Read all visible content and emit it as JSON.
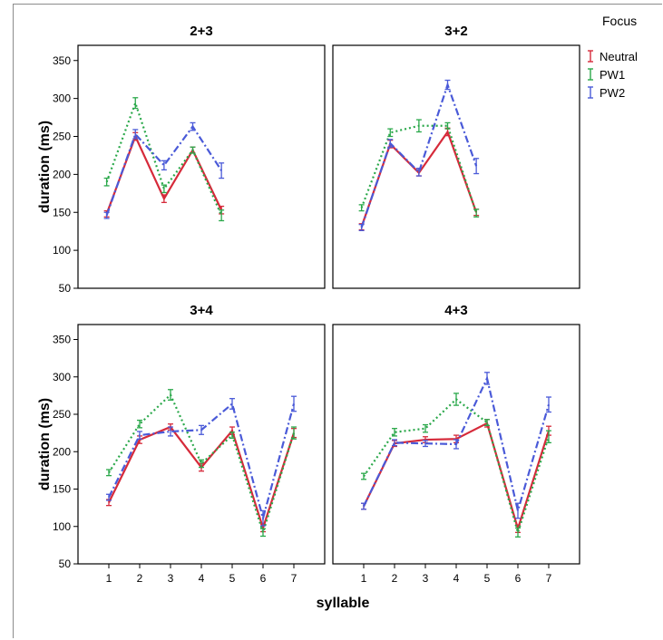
{
  "chart_data": {
    "type": "line",
    "ylabel": "duration (ms)",
    "xlabel": "syllable",
    "ylim": [
      50,
      370
    ],
    "yticks": [
      50,
      100,
      150,
      200,
      250,
      300,
      350
    ],
    "xticks": [
      1,
      2,
      3,
      4,
      5,
      6,
      7
    ],
    "error_bars": true,
    "legend": {
      "title": "Focus",
      "placement": "right",
      "entries": [
        {
          "name": "Neutral",
          "color": "#d62a3a",
          "dash": "solid"
        },
        {
          "name": "PW1",
          "color": "#2aa84a",
          "dash": "dotted"
        },
        {
          "name": "PW2",
          "color": "#4a5ad8",
          "dash": "dashdot"
        }
      ]
    },
    "panels": [
      {
        "title": "2+3",
        "x": [
          1,
          2,
          3,
          4,
          5
        ],
        "series": [
          {
            "name": "Neutral",
            "values": [
              148,
              250,
              168,
              232,
              153
            ],
            "errors": [
              4,
              5,
              5,
              4,
              5
            ]
          },
          {
            "name": "PW1",
            "values": [
              190,
              294,
              181,
              232,
              146
            ],
            "errors": [
              5,
              7,
              5,
              4,
              7
            ]
          },
          {
            "name": "PW2",
            "values": [
              146,
              253,
              212,
              263,
              205
            ],
            "errors": [
              4,
              6,
              6,
              5,
              10
            ]
          }
        ]
      },
      {
        "title": "3+2",
        "x": [
          1,
          2,
          3,
          4,
          5
        ],
        "series": [
          {
            "name": "Neutral",
            "values": [
              131,
              240,
              202,
              256,
              150
            ],
            "errors": [
              4,
              5,
              4,
              5,
              4
            ]
          },
          {
            "name": "PW1",
            "values": [
              156,
              255,
              264,
              264,
              149
            ],
            "errors": [
              4,
              5,
              8,
              4,
              5
            ]
          },
          {
            "name": "PW2",
            "values": [
              130,
              241,
              203,
              318,
              211
            ],
            "errors": [
              4,
              5,
              5,
              6,
              10
            ]
          }
        ]
      },
      {
        "title": "3+4",
        "x": [
          1,
          2,
          3,
          4,
          5,
          6,
          7
        ],
        "series": [
          {
            "name": "Neutral",
            "values": [
              132,
              216,
              233,
              179,
              228,
              98,
              225
            ],
            "errors": [
              4,
              5,
              4,
              5,
              5,
              5,
              6
            ]
          },
          {
            "name": "PW1",
            "values": [
              172,
              237,
              276,
              184,
              222,
              92,
              225
            ],
            "errors": [
              4,
              5,
              7,
              5,
              4,
              5,
              8
            ]
          },
          {
            "name": "PW2",
            "values": [
              139,
              222,
              227,
              229,
              264,
              111,
              264
            ],
            "errors": [
              4,
              5,
              6,
              6,
              7,
              10,
              10
            ]
          }
        ]
      },
      {
        "title": "4+3",
        "x": [
          1,
          2,
          3,
          4,
          5,
          6,
          7
        ],
        "series": [
          {
            "name": "Neutral",
            "values": [
              127,
              211,
              216,
              217,
              238,
              97,
              228
            ],
            "errors": [
              4,
              4,
              4,
              5,
              5,
              5,
              6
            ]
          },
          {
            "name": "PW1",
            "values": [
              167,
              226,
              231,
              270,
              239,
              92,
              220
            ],
            "errors": [
              4,
              5,
              5,
              8,
              4,
              6,
              8
            ]
          },
          {
            "name": "PW2",
            "values": [
              127,
              212,
              211,
              210,
              298,
              121,
              263
            ],
            "errors": [
              4,
              4,
              4,
              6,
              8,
              10,
              10
            ]
          }
        ]
      }
    ]
  }
}
